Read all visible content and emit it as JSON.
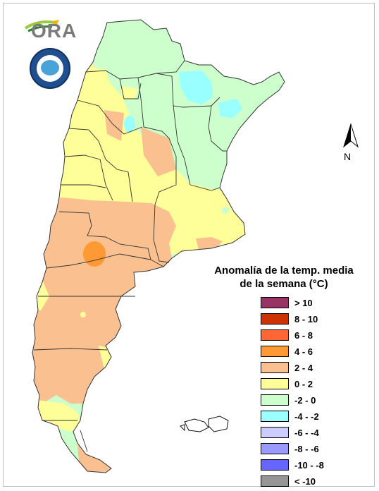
{
  "legend": {
    "title_line1": "Anomalía de la temp. media",
    "title_line2": "de la semana (°C)",
    "items": [
      {
        "label": "> 10",
        "color": "#993366"
      },
      {
        "label": "8 - 10",
        "color": "#cc3300"
      },
      {
        "label": "6 - 8",
        "color": "#ff6633"
      },
      {
        "label": "4 - 6",
        "color": "#ff9933"
      },
      {
        "label": "2 - 4",
        "color": "#fac090"
      },
      {
        "label": "0 - 2",
        "color": "#ffff99"
      },
      {
        "label": "-2 - 0",
        "color": "#ccffcc"
      },
      {
        "label": "-4 - -2",
        "color": "#99ffff"
      },
      {
        "label": "-6 - -4",
        "color": "#ccccff"
      },
      {
        "label": "-8 - -6",
        "color": "#9999ff"
      },
      {
        "label": "-10 - -8",
        "color": "#6666ff"
      },
      {
        "label": "< -10",
        "color": "#969696"
      }
    ]
  },
  "logos": {
    "ora_text": "ORA"
  },
  "north_arrow": {
    "label": "N"
  }
}
